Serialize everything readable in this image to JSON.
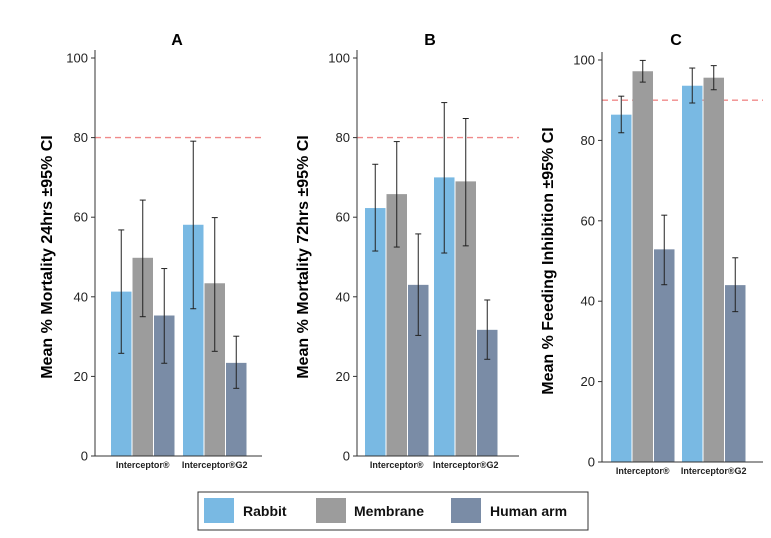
{
  "chart_data": [
    {
      "type": "bar",
      "title": "A",
      "ylabel": "Mean % Mortality 24hrs ±95% CI",
      "categories": [
        "Interceptor®",
        "Interceptor®G2"
      ],
      "ylim": [
        0,
        100
      ],
      "yticks": [
        0,
        20,
        40,
        60,
        80,
        100
      ],
      "reference_line": 80,
      "series": [
        {
          "name": "Rabbit",
          "values": [
            41.3,
            58.1
          ],
          "ci_low": [
            25.8,
            37.0
          ],
          "ci_high": [
            56.8,
            79.1
          ]
        },
        {
          "name": "Membrane",
          "values": [
            49.8,
            43.4
          ],
          "ci_low": [
            35.0,
            26.3
          ],
          "ci_high": [
            64.3,
            59.9
          ]
        },
        {
          "name": "Human arm",
          "values": [
            35.3,
            23.4
          ],
          "ci_low": [
            23.3,
            17.0
          ],
          "ci_high": [
            47.1,
            30.1
          ]
        }
      ]
    },
    {
      "type": "bar",
      "title": "B",
      "ylabel": "Mean % Mortality 72hrs ±95% CI",
      "categories": [
        "Interceptor®",
        "Interceptor®G2"
      ],
      "ylim": [
        0,
        100
      ],
      "yticks": [
        0,
        20,
        40,
        60,
        80,
        100
      ],
      "reference_line": 80,
      "series": [
        {
          "name": "Rabbit",
          "values": [
            62.3,
            70.0
          ],
          "ci_low": [
            51.5,
            51.0
          ],
          "ci_high": [
            73.3,
            88.8
          ]
        },
        {
          "name": "Membrane",
          "values": [
            65.8,
            69.0
          ],
          "ci_low": [
            52.5,
            52.8
          ],
          "ci_high": [
            79.0,
            84.8
          ]
        },
        {
          "name": "Human arm",
          "values": [
            43.0,
            31.7
          ],
          "ci_low": [
            30.3,
            24.3
          ],
          "ci_high": [
            55.8,
            39.2
          ]
        }
      ]
    },
    {
      "type": "bar",
      "title": "C",
      "ylabel": "Mean % Feeding Inhibition ±95% CI",
      "categories": [
        "Interceptor®",
        "Interceptor®G2"
      ],
      "ylim": [
        0,
        100
      ],
      "yticks": [
        0,
        20,
        40,
        60,
        80,
        100
      ],
      "reference_line": 90,
      "series": [
        {
          "name": "Rabbit",
          "values": [
            86.4,
            93.6
          ],
          "ci_low": [
            81.9,
            89.3
          ],
          "ci_high": [
            91.0,
            98.0
          ]
        },
        {
          "name": "Membrane",
          "values": [
            97.2,
            95.6
          ],
          "ci_low": [
            94.5,
            92.6
          ],
          "ci_high": [
            99.9,
            98.6
          ]
        },
        {
          "name": "Human arm",
          "values": [
            52.9,
            44.0
          ],
          "ci_low": [
            44.1,
            37.4
          ],
          "ci_high": [
            61.4,
            50.8
          ]
        }
      ]
    }
  ],
  "legend": {
    "items": [
      {
        "label": "Rabbit",
        "color": "#79b9e3"
      },
      {
        "label": "Membrane",
        "color": "#9c9c9c"
      },
      {
        "label": "Human arm",
        "color": "#7a8ca6"
      }
    ]
  },
  "colors": {
    "rabbit": "#79b9e3",
    "membrane": "#9c9c9c",
    "human_arm": "#7a8ca6",
    "reference_line": "#f08a8a"
  }
}
